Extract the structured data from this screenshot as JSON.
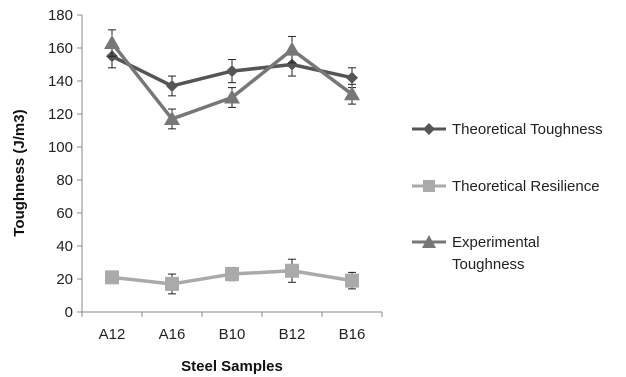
{
  "chart_data": {
    "type": "line",
    "title": "",
    "xlabel": "Steel Samples",
    "ylabel": "Toughness (J/m3)",
    "categories": [
      "A12",
      "A16",
      "B10",
      "B12",
      "B16"
    ],
    "ylim": [
      0,
      180
    ],
    "yticks": [
      0,
      20,
      40,
      60,
      80,
      100,
      120,
      140,
      160,
      180
    ],
    "grid": false,
    "legend_position": "right",
    "series": [
      {
        "name": "Theoretical Toughness",
        "values": [
          155,
          137,
          146,
          150,
          142
        ],
        "error": [
          7,
          6,
          7,
          7,
          6
        ],
        "marker": "diamond",
        "color": "#555555"
      },
      {
        "name": "Theoretical Resilience",
        "values": [
          21,
          17,
          23,
          25,
          19
        ],
        "error": [
          2,
          6,
          4,
          7,
          5
        ],
        "marker": "square",
        "color": "#aaaaaa"
      },
      {
        "name": "Experimental Toughness",
        "legend_lines": [
          "Experimental",
          "Toughness"
        ],
        "values": [
          163,
          117,
          130,
          159,
          132
        ],
        "error": [
          8,
          6,
          6,
          8,
          6
        ],
        "marker": "triangle",
        "color": "#777777"
      }
    ]
  }
}
